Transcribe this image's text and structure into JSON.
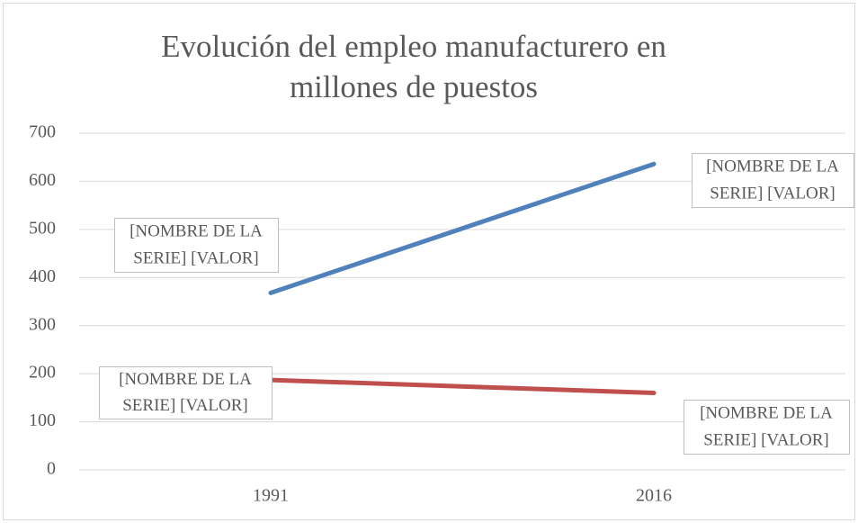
{
  "chart_data": {
    "type": "line",
    "title": [
      "Evolución del empleo manufacturero en",
      "millones de puestos"
    ],
    "categories": [
      "1991",
      "2016"
    ],
    "series": [
      {
        "color": "#4f81bd",
        "values": [
          368,
          636
        ]
      },
      {
        "color": "#c0504d",
        "values": [
          187,
          160
        ]
      }
    ],
    "ylim": [
      0,
      700
    ],
    "yticks": [
      0,
      100,
      200,
      300,
      400,
      500,
      600,
      700
    ],
    "grid": true,
    "annotations": [
      {
        "lines": [
          "[NOMBRE DE LA",
          "SERIE] [VALOR]"
        ]
      },
      {
        "lines": [
          "[NOMBRE DE LA",
          "SERIE] [VALOR]"
        ]
      },
      {
        "lines": [
          "[NOMBRE DE LA",
          "SERIE] [VALOR]"
        ]
      },
      {
        "lines": [
          "[NOMBRE DE LA",
          "SERIE] [VALOR]"
        ]
      }
    ]
  }
}
